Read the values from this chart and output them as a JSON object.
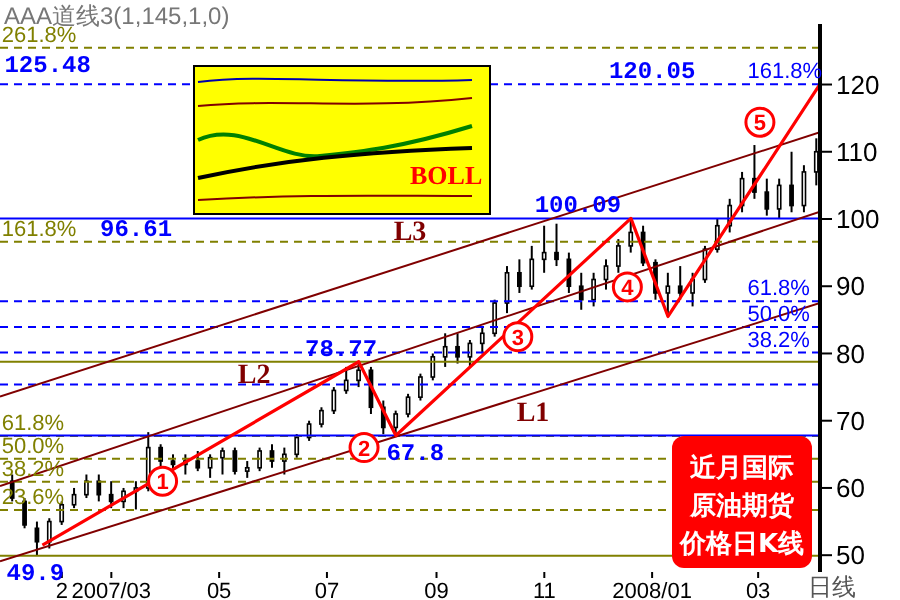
{
  "chart_data": {
    "type": "candlestick",
    "title": "AAA道线3(1,145,1,0)",
    "xlabel": "日线",
    "color": "#000000",
    "marker": "none",
    "x": [
      "2007-01-04",
      "2007-01-11",
      "2007-01-18",
      "2007-01-25",
      "2007-02-01",
      "2007-02-08",
      "2007-02-15",
      "2007-02-22",
      "2007-03-01",
      "2007-03-08",
      "2007-03-15",
      "2007-03-22",
      "2007-03-29",
      "2007-04-05",
      "2007-04-12",
      "2007-04-19",
      "2007-04-26",
      "2007-05-03",
      "2007-05-10",
      "2007-05-17",
      "2007-05-24",
      "2007-05-31",
      "2007-06-07",
      "2007-06-14",
      "2007-06-21",
      "2007-06-28",
      "2007-07-05",
      "2007-07-12",
      "2007-07-19",
      "2007-07-26",
      "2007-08-02",
      "2007-08-09",
      "2007-08-16",
      "2007-08-23",
      "2007-08-30",
      "2007-09-06",
      "2007-09-13",
      "2007-09-20",
      "2007-09-27",
      "2007-10-04",
      "2007-10-11",
      "2007-10-18",
      "2007-10-25",
      "2007-11-01",
      "2007-11-08",
      "2007-11-15",
      "2007-11-22",
      "2007-11-29",
      "2007-12-06",
      "2007-12-13",
      "2007-12-20",
      "2007-12-27",
      "2008-01-03",
      "2008-01-10",
      "2008-01-17",
      "2008-01-24",
      "2008-01-31",
      "2008-02-07",
      "2008-02-14",
      "2008-02-21",
      "2008-02-28",
      "2008-03-06",
      "2008-03-13",
      "2008-03-20",
      "2008-03-27",
      "2008-04-03"
    ],
    "ohlc": [
      [
        61,
        62,
        58,
        58.5
      ],
      [
        58,
        58.5,
        54,
        54.5
      ],
      [
        54,
        55,
        49.9,
        52
      ],
      [
        52,
        55.5,
        51,
        55
      ],
      [
        55,
        58,
        54.5,
        57.5
      ],
      [
        57.5,
        60,
        57,
        59
      ],
      [
        59,
        62,
        58.5,
        61
      ],
      [
        61,
        62,
        58,
        59
      ],
      [
        59,
        61,
        57,
        58
      ],
      [
        58,
        60,
        57,
        59.5
      ],
      [
        59.5,
        61,
        56.8,
        60
      ],
      [
        60,
        68.3,
        59.5,
        66
      ],
      [
        66,
        66.5,
        63,
        64
      ],
      [
        64,
        65,
        62.5,
        63.5
      ],
      [
        63.5,
        65,
        62,
        64
      ],
      [
        64,
        65.5,
        62.5,
        63
      ],
      [
        63,
        65,
        61.5,
        64.5
      ],
      [
        64.5,
        66,
        62,
        65.5
      ],
      [
        65.5,
        66,
        62,
        62.5
      ],
      [
        62.5,
        64,
        61.5,
        63
      ],
      [
        63,
        66,
        62.5,
        65.5
      ],
      [
        65.5,
        66.5,
        63,
        64
      ],
      [
        64,
        66,
        62,
        65
      ],
      [
        65,
        68,
        64.5,
        67.5
      ],
      [
        67.5,
        70,
        67,
        69.5
      ],
      [
        69.5,
        72,
        69,
        71.5
      ],
      [
        71.5,
        75,
        71,
        74.5
      ],
      [
        74.5,
        78,
        74,
        76
      ],
      [
        76,
        78.77,
        75,
        77.5
      ],
      [
        77.5,
        78,
        71,
        72
      ],
      [
        72,
        73,
        68,
        69
      ],
      [
        69,
        71.5,
        67.8,
        71
      ],
      [
        71,
        74,
        70.5,
        73.5
      ],
      [
        73.5,
        77,
        73,
        76.5
      ],
      [
        76.5,
        80,
        76,
        79.5
      ],
      [
        79.5,
        83,
        78,
        81
      ],
      [
        81,
        83,
        78.5,
        79.5
      ],
      [
        79.5,
        82,
        78,
        81.5
      ],
      [
        81.5,
        84,
        80,
        83
      ],
      [
        83,
        88,
        82.5,
        87.5
      ],
      [
        87.5,
        93,
        86,
        92
      ],
      [
        92,
        94,
        89,
        90
      ],
      [
        90,
        96,
        89.5,
        94
      ],
      [
        94,
        99,
        92,
        95
      ],
      [
        95,
        99.3,
        93,
        94
      ],
      [
        94,
        95,
        89,
        90
      ],
      [
        90,
        92,
        86.5,
        88
      ],
      [
        88,
        92,
        87,
        91
      ],
      [
        91,
        94,
        89.5,
        93
      ],
      [
        93,
        97,
        92,
        96
      ],
      [
        96,
        100.09,
        95,
        98
      ],
      [
        98,
        99,
        93,
        93.5
      ],
      [
        93.5,
        94,
        88,
        89
      ],
      [
        89,
        92,
        85.5,
        90
      ],
      [
        90,
        93,
        88,
        89
      ],
      [
        89,
        92,
        87,
        91
      ],
      [
        91,
        96,
        90.5,
        95.5
      ],
      [
        95.5,
        100,
        95,
        99
      ],
      [
        99,
        103,
        98,
        102
      ],
      [
        102,
        107,
        101,
        106
      ],
      [
        106,
        111,
        103,
        104
      ],
      [
        104,
        106,
        100.5,
        101.5
      ],
      [
        101.5,
        106,
        100,
        105
      ],
      [
        105,
        110,
        101,
        102
      ],
      [
        102,
        108,
        101,
        107
      ],
      [
        107,
        112,
        105,
        110
      ]
    ],
    "series": [
      {
        "type": "line",
        "name": "L1",
        "color": "#800000",
        "x": [
          "2006-12-28",
          "2008-04-05"
        ],
        "values": [
          49.1,
          87.5
        ]
      },
      {
        "type": "line",
        "name": "L2",
        "color": "#800000",
        "x": [
          "2006-12-28",
          "2008-04-05"
        ],
        "values": [
          60.3,
          101.1
        ]
      },
      {
        "type": "line",
        "name": "L3",
        "color": "#800000",
        "x": [
          "2006-12-28",
          "2008-04-05"
        ],
        "values": [
          73.6,
          112.9
        ]
      },
      {
        "type": "line",
        "color": "#ff0000",
        "x": [
          "2007-01-21",
          "2007-07-19",
          "2007-08-09",
          "2007-12-20",
          "2008-01-10",
          "2008-04-05"
        ],
        "values": [
          51.5,
          78.77,
          67.8,
          100.09,
          85.5,
          120.05
        ]
      }
    ],
    "xlim": [
      "2006-12-28",
      "2008-04-05"
    ],
    "xticks": [
      {
        "value": "2007-02-01",
        "label": "2"
      },
      {
        "value": "2007-03-01",
        "label": "2007/03"
      },
      {
        "value": "2007-05-01",
        "label": "05"
      },
      {
        "value": "2007-07-01",
        "label": "07"
      },
      {
        "value": "2007-09-01",
        "label": "09"
      },
      {
        "value": "2007-11-01",
        "label": "11"
      },
      {
        "value": "2008-01-01",
        "label": "2008/01"
      },
      {
        "value": "2008-03-01",
        "label": "03"
      }
    ],
    "ylim": [
      47.5,
      129
    ],
    "yticks": [
      50,
      60,
      70,
      80,
      90,
      100,
      110,
      120
    ],
    "ref_lines": [
      {
        "axis": "y",
        "value": 125.48,
        "color": "#808000",
        "line_style": "dashed"
      },
      {
        "axis": "y",
        "value": 96.61,
        "color": "#808000",
        "line_style": "dashed"
      },
      {
        "axis": "y",
        "value": 78.77,
        "color": "#808000",
        "line_style": "solid"
      },
      {
        "axis": "y",
        "value": 67.74,
        "color": "#808000",
        "line_style": "dashed"
      },
      {
        "axis": "y",
        "value": 64.34,
        "color": "#808000",
        "line_style": "dashed"
      },
      {
        "axis": "y",
        "value": 60.93,
        "color": "#808000",
        "line_style": "dashed"
      },
      {
        "axis": "y",
        "value": 56.71,
        "color": "#808000",
        "line_style": "dashed"
      },
      {
        "axis": "y",
        "value": 49.9,
        "color": "#808000",
        "line_style": "solid"
      },
      {
        "axis": "y",
        "value": 120.05,
        "color": "#0000ff",
        "line_style": "dashed"
      },
      {
        "axis": "y",
        "value": 100.09,
        "color": "#0000ff",
        "line_style": "solid"
      },
      {
        "axis": "y",
        "value": 87.76,
        "color": "#0000ff",
        "line_style": "dashed"
      },
      {
        "axis": "y",
        "value": 83.95,
        "color": "#0000ff",
        "line_style": "dashed"
      },
      {
        "axis": "y",
        "value": 80.13,
        "color": "#0000ff",
        "line_style": "dashed"
      },
      {
        "axis": "y",
        "value": 75.4,
        "color": "#0000ff",
        "line_style": "dashed"
      },
      {
        "axis": "y",
        "value": 67.8,
        "color": "#0000ff",
        "line_style": "solid"
      }
    ],
    "annotations": [
      "近月国际原油期货价格日K线",
      "BOLL",
      {
        "text": "125.48",
        "x": "2007-01-24",
        "y": 125.48
      },
      {
        "text": "120.05",
        "x": "2008-01-01",
        "y": 120.05
      },
      {
        "text": "100.09",
        "x": "2007-11-20",
        "y": 100.09
      },
      {
        "text": "96.61",
        "x": "2007-03-15",
        "y": 96.61
      },
      {
        "text": "78.77",
        "x": "2007-07-09",
        "y": 78.77
      },
      {
        "text": "67.8",
        "x": "2007-08-20",
        "y": 67.8
      },
      {
        "text": "49.9",
        "x": "2007-01-17",
        "y": 49.9
      },
      {
        "text": "1",
        "x": "2007-03-30",
        "y": 61
      },
      {
        "text": "2",
        "x": "2007-07-22",
        "y": 66
      },
      {
        "text": "3",
        "x": "2007-10-17",
        "y": 82.5
      },
      {
        "text": "4",
        "x": "2007-12-18",
        "y": 89.9
      },
      {
        "text": "5",
        "x": "2008-03-02",
        "y": 114.4
      },
      {
        "text": "261.8%",
        "x": "2006-12-29",
        "y": 125.48
      },
      {
        "text": "161.8%",
        "x": "2006-12-29",
        "y": 96.61
      },
      {
        "text": "61.8%",
        "x": "2006-12-29",
        "y": 67.74
      },
      {
        "text": "50.0%",
        "x": "2006-12-29",
        "y": 64.34
      },
      {
        "text": "38.2%",
        "x": "2006-12-29",
        "y": 60.93
      },
      {
        "text": "23.6%",
        "x": "2006-12-29",
        "y": 56.71
      },
      {
        "text": "161.8%",
        "x": "2008-02-24",
        "y": 120.05
      },
      {
        "text": "61.8%",
        "x": "2008-02-24",
        "y": 87.76
      },
      {
        "text": "50.0%",
        "x": "2008-02-24",
        "y": 83.95
      },
      {
        "text": "38.2%",
        "x": "2008-02-24",
        "y": 80.13
      }
    ]
  }
}
